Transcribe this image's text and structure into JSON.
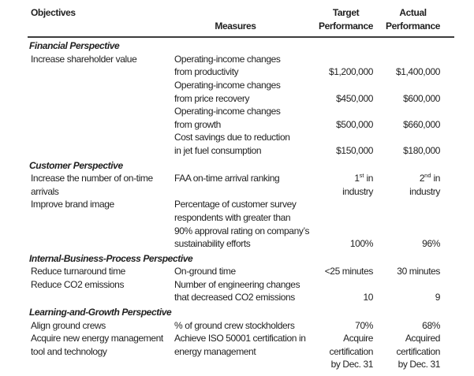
{
  "colors": {
    "text": "#1f1f1f",
    "rule": "#3c3c3c",
    "paper": "#ffffff"
  },
  "table": {
    "headers": {
      "objectives": "Objectives",
      "measures": "Measures",
      "target": "Target\nPerformance",
      "actual": "Actual\nPerformance"
    },
    "sections": [
      {
        "title": "Financial Perspective",
        "rows": [
          {
            "objective": "Increase shareholder value",
            "measure": "Operating-income changes\nfrom productivity",
            "target": "$1,200,000",
            "actual": "$1,400,000"
          },
          {
            "objective": "",
            "measure": "Operating-income changes\nfrom price recovery",
            "target": "$450,000",
            "actual": "$600,000"
          },
          {
            "objective": "",
            "measure": "Operating-income changes\nfrom growth",
            "target": "$500,000",
            "actual": "$660,000"
          },
          {
            "objective": "",
            "measure": "Cost savings due to reduction\nin jet fuel consumption",
            "target": "$150,000",
            "actual": "$180,000"
          }
        ]
      },
      {
        "title": "Customer Perspective",
        "rows": [
          {
            "objective": "Increase the number of on-time\narrivals",
            "measure": "FAA on-time arrival ranking",
            "target": {
              "num": "1",
              "sup": "st",
              "rest": " in\nindustry"
            },
            "actual": {
              "num": "2",
              "sup": "nd",
              "rest": " in\nindustry"
            }
          },
          {
            "objective": "Improve brand image",
            "measure": "Percentage of customer survey\nrespondents with greater than\n90% approval rating on company’s\nsustainability efforts",
            "target": "100%",
            "actual": "96%"
          }
        ]
      },
      {
        "title": "Internal-Business-Process Perspective",
        "rows": [
          {
            "objective": "Reduce turnaround time",
            "measure": "On-ground time",
            "target": "<25 minutes",
            "actual": "30 minutes"
          },
          {
            "objective": "Reduce CO2 emissions",
            "measure": "Number of engineering changes\nthat decreased CO2 emissions",
            "target": "10",
            "actual": "9"
          }
        ]
      },
      {
        "title": "Learning-and-Growth Perspective",
        "rows": [
          {
            "objective": "Align ground crews",
            "measure": "% of ground crew stockholders",
            "target": "70%",
            "actual": "68%"
          },
          {
            "objective": "Acquire new energy management\ntool and technology",
            "measure": "Achieve ISO 50001 certification in\nenergy management",
            "target": "Acquire\ncertification\nby Dec. 31",
            "actual": "Acquired\ncertification\nby Dec. 31"
          }
        ]
      }
    ]
  }
}
